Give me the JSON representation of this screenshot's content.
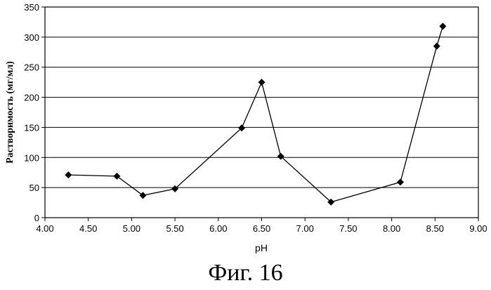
{
  "chart_data": {
    "type": "line",
    "xlabel": "pH",
    "ylabel": "Растворимость (мг/мл)",
    "xlim": [
      4.0,
      9.0
    ],
    "ylim": [
      0,
      350
    ],
    "x_ticks": [
      "4.00",
      "4.50",
      "5.00",
      "5.50",
      "6.00",
      "6.50",
      "7.00",
      "7.50",
      "8.00",
      "8.50",
      "9.00"
    ],
    "y_ticks": [
      "0",
      "50",
      "100",
      "150",
      "200",
      "250",
      "300",
      "350"
    ],
    "grid": "horizontal",
    "marker": "diamond",
    "series": [
      {
        "x": [
          4.27,
          4.83,
          5.13,
          5.5,
          6.27,
          6.5,
          6.72,
          7.3,
          8.1,
          8.52,
          8.59
        ],
        "y": [
          71,
          69,
          37,
          48,
          149,
          225,
          102,
          26,
          59,
          285,
          318
        ]
      }
    ]
  },
  "caption": "Фиг. 16"
}
